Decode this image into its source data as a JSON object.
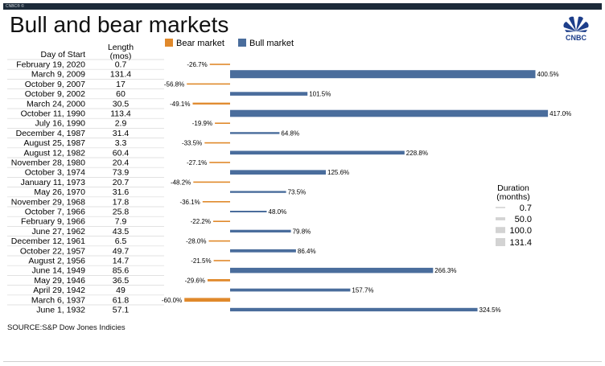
{
  "header": {
    "tag": "CNBC® ©",
    "title": "Bull and bear markets",
    "logo_text": "CNBC"
  },
  "source": "SOURCE:S&P Dow Jones Indicies",
  "colors": {
    "bear": "#e0892b",
    "bull": "#4a6d9c",
    "header_bar": "#1d2b3a",
    "duration_box": "#d3d3d3"
  },
  "chart_data": {
    "type": "bar",
    "orientation": "horizontal",
    "legend": [
      {
        "name": "Bear market",
        "color": "#e0892b"
      },
      {
        "name": "Bull market",
        "color": "#4a6d9c"
      }
    ],
    "columns": {
      "day": "Day of Start",
      "length": "Length\n(mos)"
    },
    "rows": [
      {
        "date": "February 19, 2020",
        "length": "0.7",
        "change": -26.7,
        "label": "-26.7%"
      },
      {
        "date": "March 9, 2009",
        "length": "131.4",
        "change": 400.5,
        "label": "400.5%"
      },
      {
        "date": "October 9, 2007",
        "length": "17",
        "change": -56.8,
        "label": "-56.8%"
      },
      {
        "date": "October 9, 2002",
        "length": "60",
        "change": 101.5,
        "label": "101.5%"
      },
      {
        "date": "March 24, 2000",
        "length": "30.5",
        "change": -49.1,
        "label": "-49.1%"
      },
      {
        "date": "October 11, 1990",
        "length": "113.4",
        "change": 417.0,
        "label": "417.0%"
      },
      {
        "date": "July 16, 1990",
        "length": "2.9",
        "change": -19.9,
        "label": "-19.9%"
      },
      {
        "date": "December 4, 1987",
        "length": "31.4",
        "change": 64.8,
        "label": "64.8%"
      },
      {
        "date": "August 25, 1987",
        "length": "3.3",
        "change": -33.5,
        "label": "-33.5%"
      },
      {
        "date": "August 12, 1982",
        "length": "60.4",
        "change": 228.8,
        "label": "228.8%"
      },
      {
        "date": "November 28, 1980",
        "length": "20.4",
        "change": -27.1,
        "label": "-27.1%"
      },
      {
        "date": "October 3, 1974",
        "length": "73.9",
        "change": 125.6,
        "label": "125.6%"
      },
      {
        "date": "January 11, 1973",
        "length": "20.7",
        "change": -48.2,
        "label": "-48.2%"
      },
      {
        "date": "May 26, 1970",
        "length": "31.6",
        "change": 73.5,
        "label": "73.5%"
      },
      {
        "date": "November 29, 1968",
        "length": "17.8",
        "change": -36.1,
        "label": "-36.1%"
      },
      {
        "date": "October 7, 1966",
        "length": "25.8",
        "change": 48.0,
        "label": "48.0%"
      },
      {
        "date": "February 9, 1966",
        "length": "7.9",
        "change": -22.2,
        "label": "-22.2%"
      },
      {
        "date": "June 27, 1962",
        "length": "43.5",
        "change": 79.8,
        "label": "79.8%"
      },
      {
        "date": "December 12, 1961",
        "length": "6.5",
        "change": -28.0,
        "label": "-28.0%"
      },
      {
        "date": "October 22, 1957",
        "length": "49.7",
        "change": 86.4,
        "label": "86.4%"
      },
      {
        "date": "August 2, 1956",
        "length": "14.7",
        "change": -21.5,
        "label": "-21.5%"
      },
      {
        "date": "June 14, 1949",
        "length": "85.6",
        "change": 266.3,
        "label": "266.3%"
      },
      {
        "date": "May 29, 1946",
        "length": "36.5",
        "change": -29.6,
        "label": "-29.6%"
      },
      {
        "date": "April 29, 1942",
        "length": "49",
        "change": 157.7,
        "label": "157.7%"
      },
      {
        "date": "March 6, 1937",
        "length": "61.8",
        "change": -60.0,
        "label": "-60.0%"
      },
      {
        "date": "June 1, 1932",
        "length": "57.1",
        "change": 324.5,
        "label": "324.5%"
      }
    ],
    "duration_legend": {
      "title": "Duration\n(months)",
      "items": [
        {
          "value": 0.7,
          "label": "0.7"
        },
        {
          "value": 50,
          "label": "50.0"
        },
        {
          "value": 100,
          "label": "100.0"
        },
        {
          "value": 131.4,
          "label": "131.4"
        }
      ]
    }
  }
}
